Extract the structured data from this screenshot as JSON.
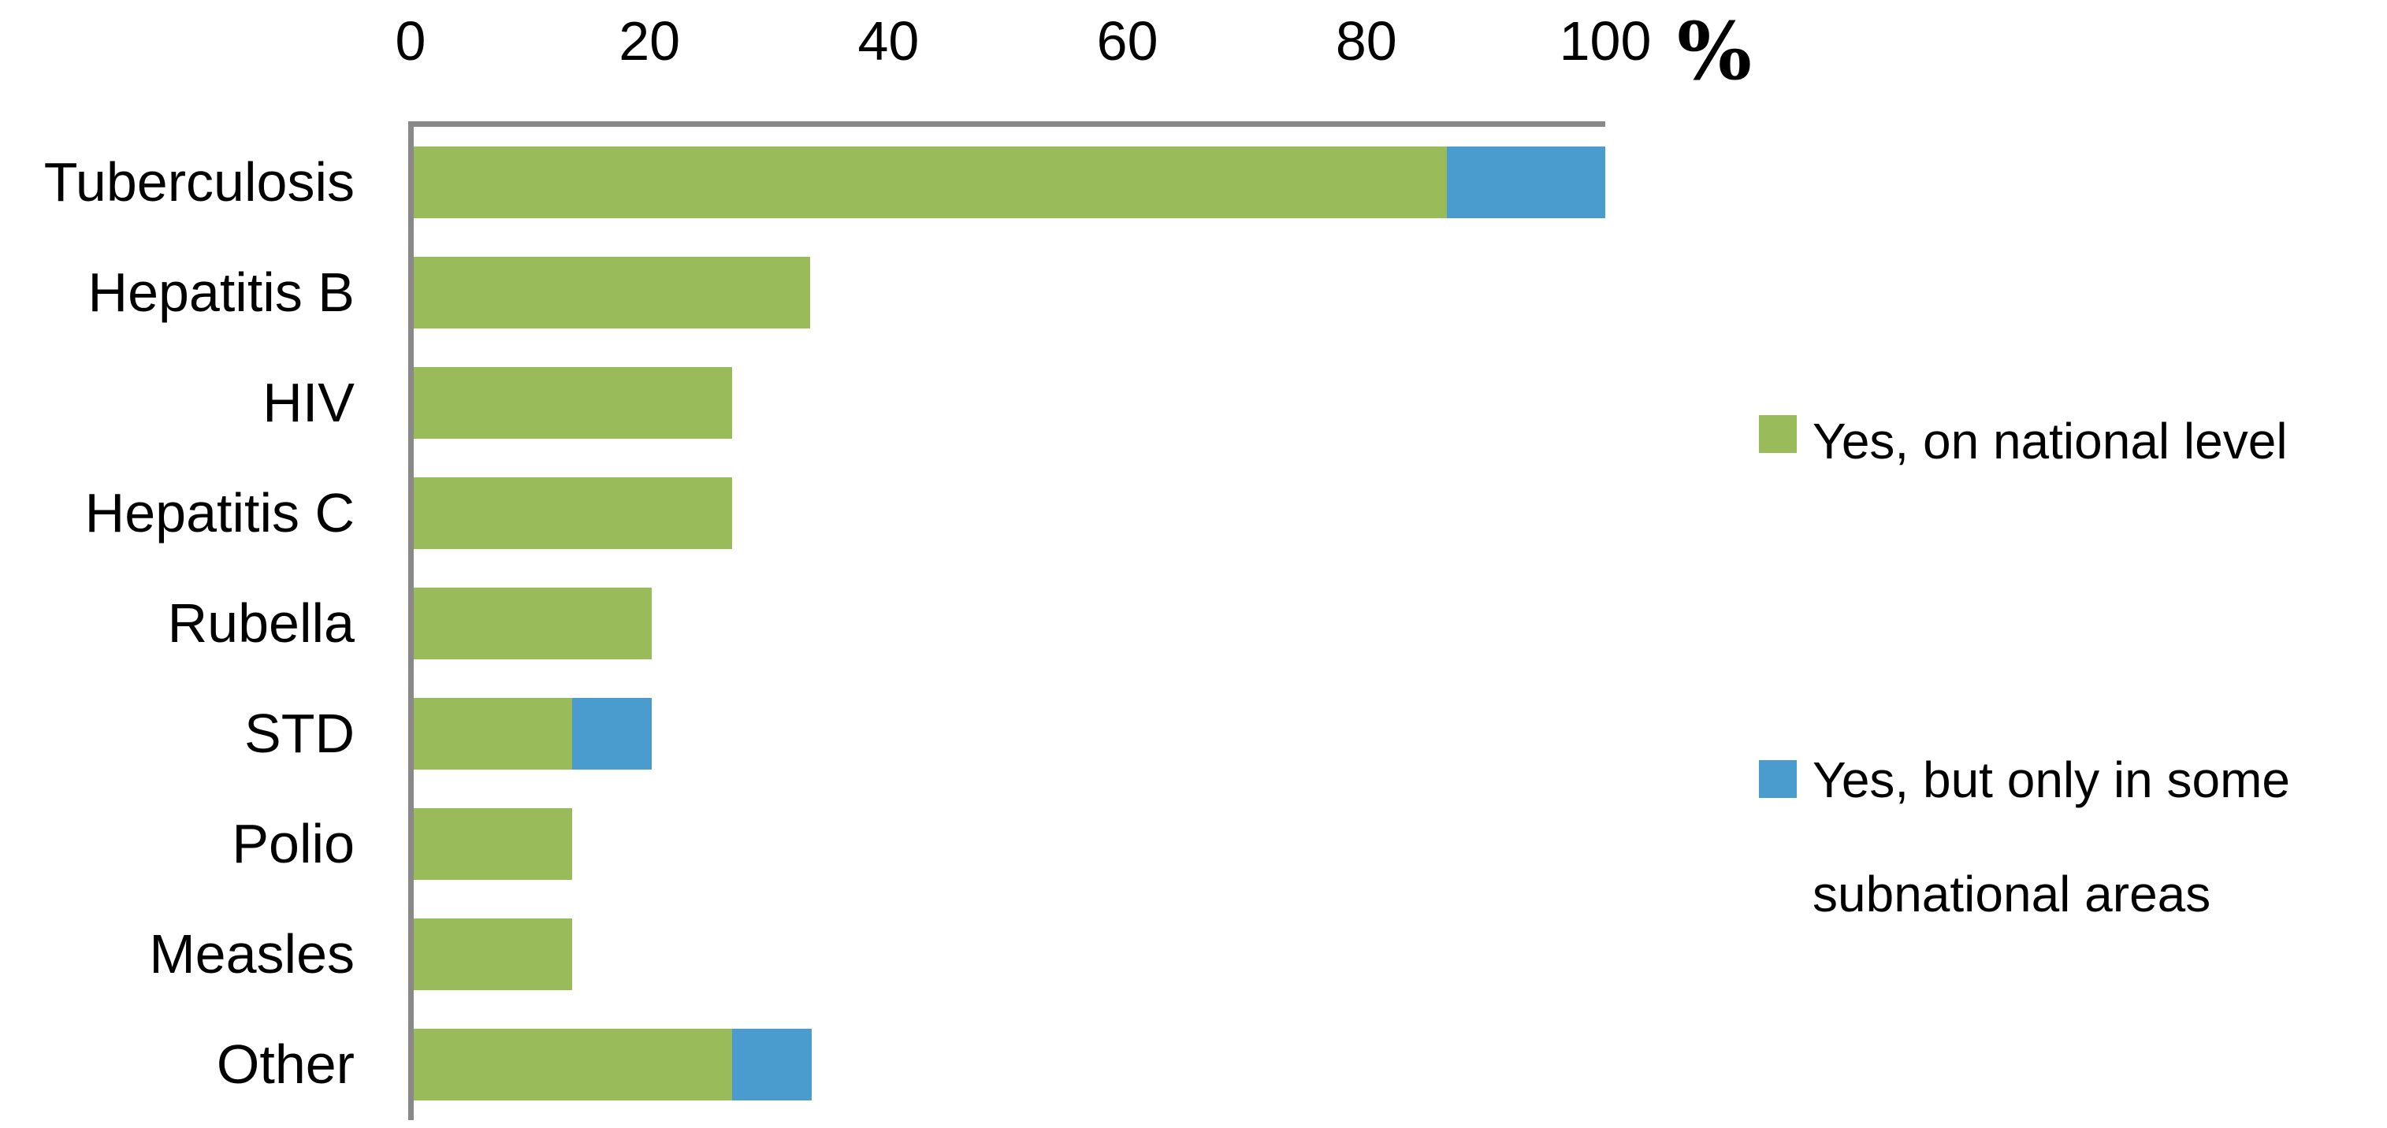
{
  "chart_data": {
    "type": "bar",
    "orientation": "horizontal",
    "stacked": true,
    "title": "",
    "xlabel": "%",
    "ylabel": "",
    "xlim": [
      0,
      100
    ],
    "x_ticks": [
      "0",
      "20",
      "40",
      "60",
      "80",
      "100"
    ],
    "grid": false,
    "legend_position": "right",
    "categories": [
      "Tuberculosis",
      "Hepatitis B",
      "HIV",
      "Hepatitis C",
      "Rubella",
      "STD",
      "Polio",
      "Measles",
      "Other"
    ],
    "series": [
      {
        "name": "Yes, on national level",
        "color": "#9ABB59",
        "values": [
          86.7,
          33.3,
          26.7,
          26.7,
          20,
          13.3,
          13.3,
          13.3,
          26.7
        ]
      },
      {
        "name": "Yes, but only in some subnational areas",
        "color": "#4A9CCE",
        "values": [
          13.3,
          0,
          0,
          0,
          0,
          6.7,
          0,
          0,
          6.7
        ]
      }
    ]
  },
  "axis": {
    "unit_label": "%"
  },
  "legend": {
    "items": [
      {
        "label": "Yes, on national level",
        "lines": [
          "Yes, on national level"
        ],
        "color": "#9ABB59"
      },
      {
        "label": "Yes, but only in some subnational areas",
        "lines": [
          "Yes, but only in some",
          "subnational areas"
        ],
        "color": "#4A9CCE"
      }
    ]
  },
  "colors": {
    "green_series": "#9ABB59",
    "blue_series": "#4A9CCE",
    "axis_line": "#898989",
    "text": "#000000",
    "background": "#FFFFFF"
  }
}
